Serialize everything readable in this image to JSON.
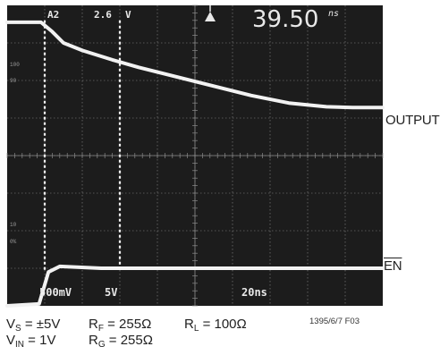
{
  "scope_readout": {
    "channel": "A2",
    "trigger_level": "2.6",
    "trigger_unit": "V",
    "delta_time": "39.50",
    "delta_time_unit": "ns",
    "ch1_scale": "500mV",
    "ch2_scale": "5V",
    "time_scale": "20ns"
  },
  "graticule_labels": [
    "100",
    "90",
    "10",
    "0%"
  ],
  "trace_labels": {
    "output": "OUTPUT",
    "enable": "EN"
  },
  "conditions": {
    "vs": {
      "sym": "V",
      "sub": "S",
      "val": " = ±5V"
    },
    "rf": {
      "sym": "R",
      "sub": "F",
      "val": " = 255Ω"
    },
    "rl": {
      "sym": "R",
      "sub": "L",
      "val": " = 100Ω"
    },
    "vin": {
      "sym": "V",
      "sub": "IN",
      "val": " = 1V"
    },
    "rg": {
      "sym": "R",
      "sub": "G",
      "val": " = 255Ω"
    }
  },
  "figure_code": "1395/6/7 F03",
  "colors": {
    "screen": "#1c1c1c",
    "grid": "#8a8a8a",
    "trace": "#f2f2f2",
    "readout": "#e8e8e8"
  },
  "chart_data": {
    "type": "line",
    "title": "",
    "xlabel": "",
    "ylabel": "",
    "x_units": "divisions",
    "xlim": [
      0,
      10
    ],
    "ylim": [
      0,
      8
    ],
    "grid": true,
    "series": [
      {
        "name": "OUTPUT",
        "x": [
          0,
          0.9,
          1.2,
          1.5,
          2.0,
          2.8,
          3.5,
          4.5,
          5.5,
          6.5,
          7.5,
          8.5,
          9.2,
          10
        ],
        "y": [
          7.55,
          7.55,
          7.3,
          7.0,
          6.8,
          6.55,
          6.35,
          6.1,
          5.85,
          5.6,
          5.4,
          5.3,
          5.28,
          5.28
        ]
      },
      {
        "name": "EN",
        "x": [
          0,
          0.85,
          1.1,
          1.4,
          2.5,
          10
        ],
        "y": [
          0,
          0.05,
          0.9,
          1.05,
          1.0,
          1.0
        ]
      }
    ],
    "markers": [
      {
        "label": "left cursor",
        "x": 1.0
      },
      {
        "label": "right cursor",
        "x": 3.0
      }
    ]
  }
}
